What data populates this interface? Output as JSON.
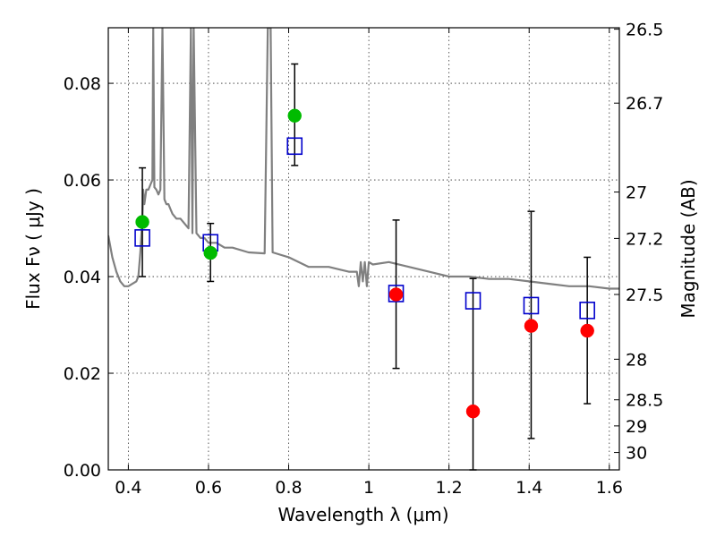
{
  "chart_data": {
    "type": "scatter",
    "title": "",
    "xlabel": "Wavelength  λ (μm)",
    "ylabel": "Flux  Fν  ( μJy )",
    "y2label": "Magnitude (AB)",
    "xlim": [
      0.35,
      1.625
    ],
    "ylim": [
      0.0,
      0.0915
    ],
    "grid": true,
    "x_ticks": [
      0.4,
      0.6,
      0.8,
      1.0,
      1.2,
      1.4,
      1.6
    ],
    "x_tick_labels": [
      "0.4",
      "0.6",
      "0.8",
      "1",
      "1.2",
      "1.4",
      "1.6"
    ],
    "y_ticks": [
      0.0,
      0.02,
      0.04,
      0.06,
      0.08
    ],
    "y_tick_labels": [
      "0.00",
      "0.02",
      "0.04",
      "0.06",
      "0.08"
    ],
    "y2_ticks": [
      {
        "label": "26.5",
        "flux": 0.0912
      },
      {
        "label": "26.7",
        "flux": 0.0759
      },
      {
        "label": "27",
        "flux": 0.0575
      },
      {
        "label": "27.2",
        "flux": 0.0479
      },
      {
        "label": "27.5",
        "flux": 0.0363
      },
      {
        "label": "28",
        "flux": 0.0229
      },
      {
        "label": "28.5",
        "flux": 0.0145
      },
      {
        "label": "29",
        "flux": 0.0091
      },
      {
        "label": "30",
        "flux": 0.0036
      }
    ],
    "series": [
      {
        "kind": "model-spectrum",
        "color": "#808080",
        "x": [
          0.35,
          0.36,
          0.37,
          0.38,
          0.39,
          0.4,
          0.41,
          0.42,
          0.425,
          0.43,
          0.435,
          0.437,
          0.44,
          0.445,
          0.45,
          0.455,
          0.46,
          0.462,
          0.465,
          0.47,
          0.475,
          0.48,
          0.485,
          0.49,
          0.495,
          0.5,
          0.505,
          0.51,
          0.52,
          0.53,
          0.54,
          0.55,
          0.556,
          0.56,
          0.563,
          0.57,
          0.58,
          0.59,
          0.6,
          0.62,
          0.64,
          0.66,
          0.7,
          0.74,
          0.748,
          0.755,
          0.76,
          0.8,
          0.85,
          0.9,
          0.95,
          0.97,
          0.975,
          0.98,
          0.985,
          0.99,
          0.995,
          1.0,
          1.01,
          1.05,
          1.1,
          1.15,
          1.2,
          1.25,
          1.3,
          1.35,
          1.4,
          1.45,
          1.5,
          1.55,
          1.6,
          1.625
        ],
        "y": [
          0.0485,
          0.044,
          0.041,
          0.039,
          0.038,
          0.038,
          0.0385,
          0.039,
          0.04,
          0.045,
          0.052,
          0.058,
          0.055,
          0.058,
          0.058,
          0.059,
          0.06,
          0.0915,
          0.0585,
          0.058,
          0.057,
          0.058,
          0.0915,
          0.056,
          0.055,
          0.055,
          0.054,
          0.053,
          0.052,
          0.052,
          0.051,
          0.05,
          0.0915,
          0.049,
          0.0915,
          0.049,
          0.048,
          0.048,
          0.047,
          0.047,
          0.046,
          0.046,
          0.045,
          0.0448,
          0.0915,
          0.0915,
          0.045,
          0.044,
          0.042,
          0.042,
          0.041,
          0.041,
          0.038,
          0.043,
          0.039,
          0.043,
          0.038,
          0.043,
          0.0425,
          0.043,
          0.042,
          0.041,
          0.04,
          0.04,
          0.0395,
          0.0395,
          0.039,
          0.0385,
          0.038,
          0.038,
          0.0375,
          0.0375
        ]
      },
      {
        "kind": "model-points",
        "marker": "open-square",
        "color": "#0000cc",
        "x": [
          0.435,
          0.605,
          0.815,
          1.068,
          1.26,
          1.405,
          1.545
        ],
        "y": [
          0.048,
          0.047,
          0.067,
          0.0365,
          0.035,
          0.034,
          0.033
        ]
      },
      {
        "kind": "detections",
        "marker": "filled-circle",
        "color": "#00bb00",
        "x": [
          0.435,
          0.605,
          0.815
        ],
        "y": [
          0.0513,
          0.0449,
          0.0733
        ],
        "err_low": [
          0.0113,
          0.0059,
          0.0103
        ],
        "err_high": [
          0.0112,
          0.0061,
          0.0107
        ]
      },
      {
        "kind": "non-detections",
        "marker": "filled-circle",
        "color": "#ff0000",
        "x": [
          1.068,
          1.26,
          1.405,
          1.545
        ],
        "y": [
          0.0363,
          0.0121,
          0.0298,
          0.0288
        ],
        "err_low": [
          0.0153,
          0.0121,
          0.0233,
          0.0151
        ],
        "err_high": [
          0.0154,
          0.0275,
          0.0237,
          0.0152
        ]
      }
    ]
  }
}
